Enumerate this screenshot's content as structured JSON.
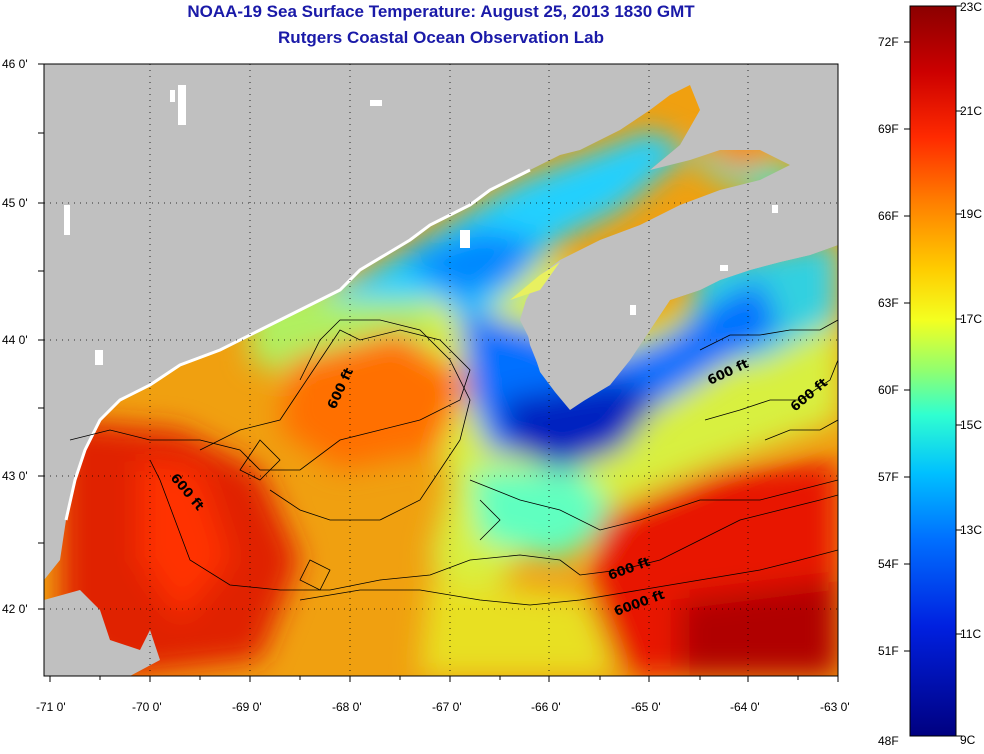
{
  "title_line1": "NOAA-19 Sea Surface Temperature:  August 25, 2013 1830 GMT",
  "title_line2": "Rutgers Coastal Ocean Observation Lab",
  "map": {
    "lat_labels": [
      "46 0'",
      "45 0'",
      "44 0'",
      "43 0'",
      "42 0'"
    ],
    "lon_labels": [
      "-71 0'",
      "-70 0'",
      "-69 0'",
      "-68 0'",
      "-67 0'",
      "-66 0'",
      "-65 0'",
      "-64 0'",
      "-63 0'"
    ],
    "land_color": "#c0c0c0",
    "contour_labels": [
      "600 ft",
      "600 ft",
      "600 ft",
      "600 ft",
      "600 ft",
      "6000 ft"
    ]
  },
  "colorbar": {
    "fahrenheit_labels": [
      "72F",
      "69F",
      "66F",
      "63F",
      "60F",
      "57F",
      "54F",
      "51F",
      "48F"
    ],
    "celsius_labels": [
      "23C",
      "21C",
      "19C",
      "17C",
      "15C",
      "13C",
      "11C",
      "9C"
    ],
    "colors": [
      "#8b0000",
      "#d40000",
      "#ff3a00",
      "#ff8c00",
      "#ffd000",
      "#f0ff20",
      "#90ff70",
      "#30ffd0",
      "#00c8ff",
      "#0080ff",
      "#0030e0",
      "#000090"
    ]
  }
}
